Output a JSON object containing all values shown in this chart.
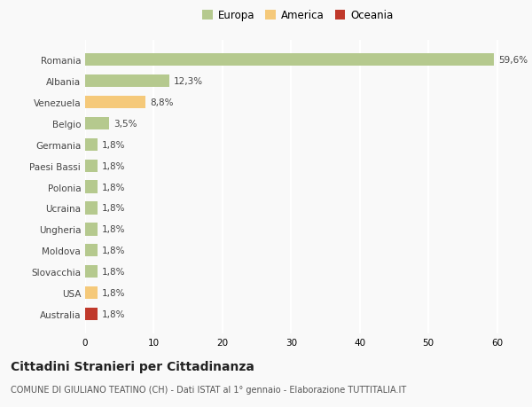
{
  "countries": [
    "Romania",
    "Albania",
    "Venezuela",
    "Belgio",
    "Germania",
    "Paesi Bassi",
    "Polonia",
    "Ucraina",
    "Ungheria",
    "Moldova",
    "Slovacchia",
    "USA",
    "Australia"
  ],
  "values": [
    59.6,
    12.3,
    8.8,
    3.5,
    1.8,
    1.8,
    1.8,
    1.8,
    1.8,
    1.8,
    1.8,
    1.8,
    1.8
  ],
  "labels": [
    "59,6%",
    "12,3%",
    "8,8%",
    "3,5%",
    "1,8%",
    "1,8%",
    "1,8%",
    "1,8%",
    "1,8%",
    "1,8%",
    "1,8%",
    "1,8%",
    "1,8%"
  ],
  "colors": [
    "#b5c98e",
    "#b5c98e",
    "#f5c97a",
    "#b5c98e",
    "#b5c98e",
    "#b5c98e",
    "#b5c98e",
    "#b5c98e",
    "#b5c98e",
    "#b5c98e",
    "#b5c98e",
    "#f5c97a",
    "#c0392b"
  ],
  "legend_labels": [
    "Europa",
    "America",
    "Oceania"
  ],
  "legend_colors": [
    "#b5c98e",
    "#f5c97a",
    "#c0392b"
  ],
  "title": "Cittadini Stranieri per Cittadinanza",
  "subtitle": "COMUNE DI GIULIANO TEATINO (CH) - Dati ISTAT al 1° gennaio - Elaborazione TUTTITALIA.IT",
  "xlim": [
    0,
    62
  ],
  "xticks": [
    0,
    10,
    20,
    30,
    40,
    50,
    60
  ],
  "background_color": "#f9f9f9",
  "grid_color": "#ffffff",
  "bar_height": 0.6,
  "label_fontsize": 7.5,
  "tick_fontsize": 7.5,
  "title_fontsize": 10,
  "subtitle_fontsize": 7,
  "legend_fontsize": 8.5
}
